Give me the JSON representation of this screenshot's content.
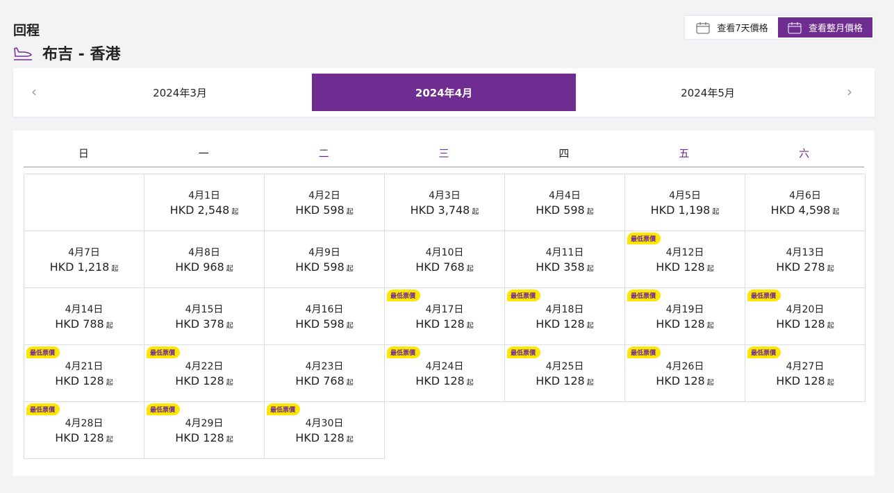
{
  "header": {
    "trip_label": "回程",
    "route": "布吉 - 香港"
  },
  "view_buttons": {
    "week": "查看7天價格",
    "month": "查看整月價格"
  },
  "months": {
    "prev": "2024年3月",
    "current": "2024年4月",
    "next": "2024年5月"
  },
  "weekdays": [
    "日",
    "一",
    "二",
    "三",
    "四",
    "五",
    "六"
  ],
  "suffix": "起",
  "badge_label": "最低票價",
  "days": [
    {
      "date": "4月1日",
      "price": "HKD 2,548",
      "lowest": false
    },
    {
      "date": "4月2日",
      "price": "HKD 598",
      "lowest": false
    },
    {
      "date": "4月3日",
      "price": "HKD 3,748",
      "lowest": false
    },
    {
      "date": "4月4日",
      "price": "HKD 598",
      "lowest": false
    },
    {
      "date": "4月5日",
      "price": "HKD 1,198",
      "lowest": false
    },
    {
      "date": "4月6日",
      "price": "HKD 4,598",
      "lowest": false
    },
    {
      "date": "4月7日",
      "price": "HKD 1,218",
      "lowest": false
    },
    {
      "date": "4月8日",
      "price": "HKD 968",
      "lowest": false
    },
    {
      "date": "4月9日",
      "price": "HKD 598",
      "lowest": false
    },
    {
      "date": "4月10日",
      "price": "HKD 768",
      "lowest": false
    },
    {
      "date": "4月11日",
      "price": "HKD 358",
      "lowest": false
    },
    {
      "date": "4月12日",
      "price": "HKD 128",
      "lowest": true
    },
    {
      "date": "4月13日",
      "price": "HKD 278",
      "lowest": false
    },
    {
      "date": "4月14日",
      "price": "HKD 788",
      "lowest": false
    },
    {
      "date": "4月15日",
      "price": "HKD 378",
      "lowest": false
    },
    {
      "date": "4月16日",
      "price": "HKD 598",
      "lowest": false
    },
    {
      "date": "4月17日",
      "price": "HKD 128",
      "lowest": true
    },
    {
      "date": "4月18日",
      "price": "HKD 128",
      "lowest": true
    },
    {
      "date": "4月19日",
      "price": "HKD 128",
      "lowest": true
    },
    {
      "date": "4月20日",
      "price": "HKD 128",
      "lowest": true
    },
    {
      "date": "4月21日",
      "price": "HKD 128",
      "lowest": true
    },
    {
      "date": "4月22日",
      "price": "HKD 128",
      "lowest": true
    },
    {
      "date": "4月23日",
      "price": "HKD 768",
      "lowest": false
    },
    {
      "date": "4月24日",
      "price": "HKD 128",
      "lowest": true
    },
    {
      "date": "4月25日",
      "price": "HKD 128",
      "lowest": true
    },
    {
      "date": "4月26日",
      "price": "HKD 128",
      "lowest": true
    },
    {
      "date": "4月27日",
      "price": "HKD 128",
      "lowest": true
    },
    {
      "date": "4月28日",
      "price": "HKD 128",
      "lowest": true
    },
    {
      "date": "4月29日",
      "price": "HKD 128",
      "lowest": true
    },
    {
      "date": "4月30日",
      "price": "HKD 128",
      "lowest": true
    }
  ],
  "colors": {
    "brand": "#6f2c91",
    "badge": "#ffe600"
  }
}
